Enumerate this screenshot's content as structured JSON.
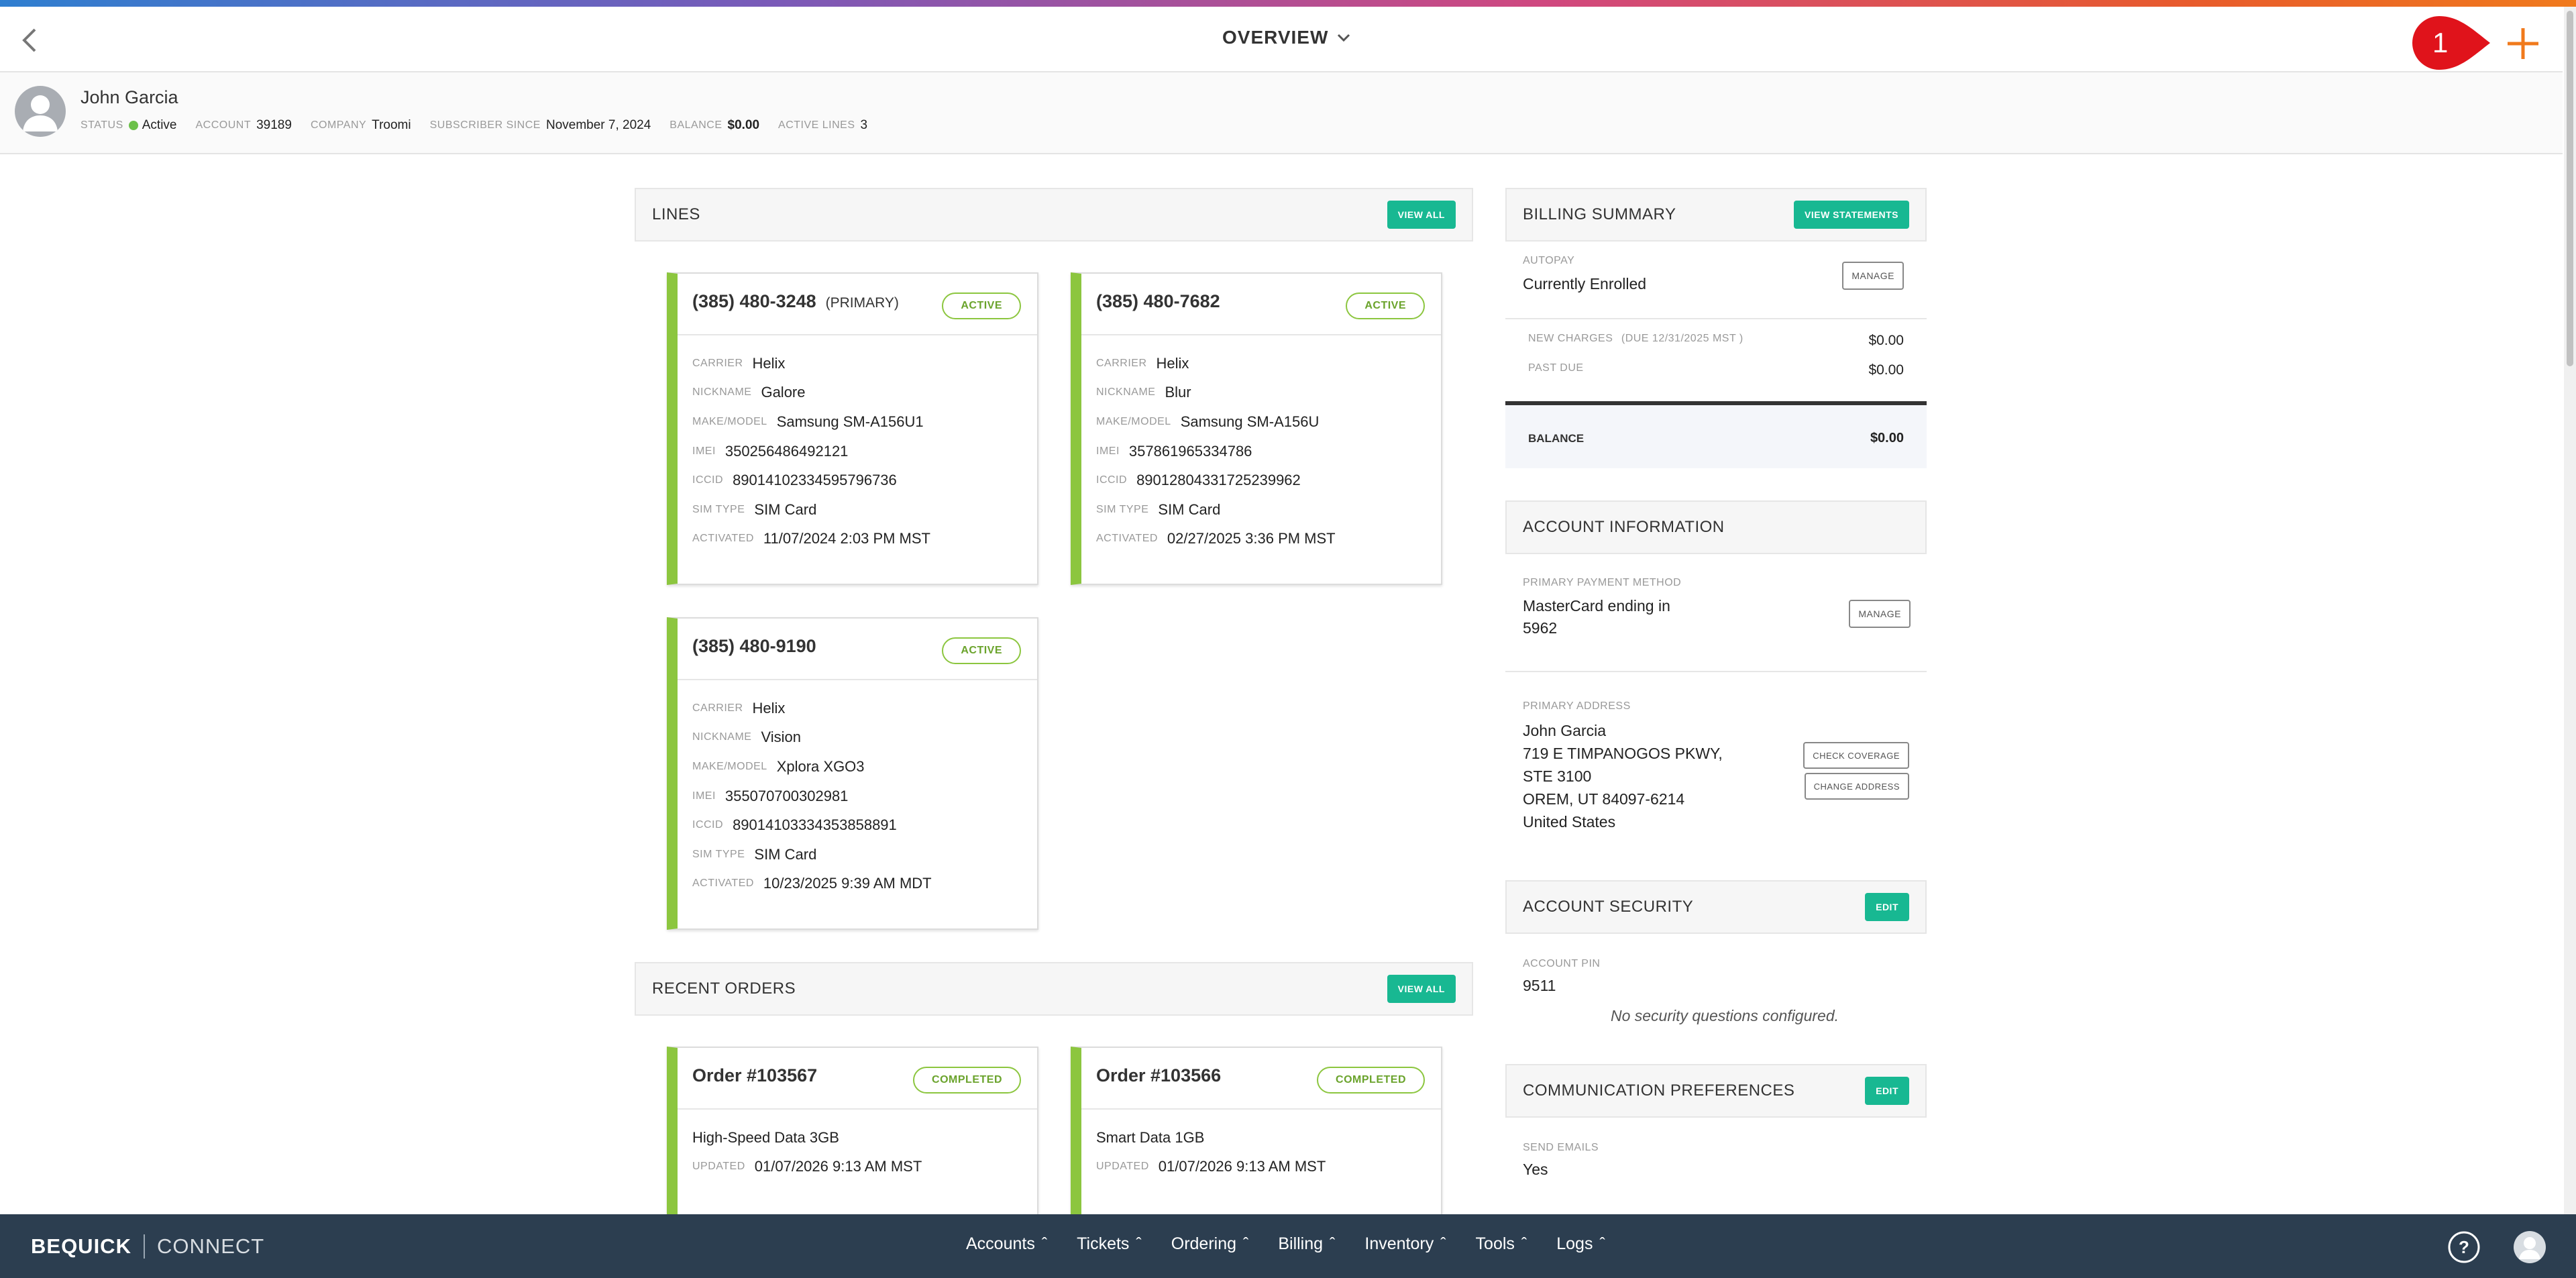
{
  "header": {
    "title": "OVERVIEW",
    "badge": "1"
  },
  "subscriber": {
    "name": "John Garcia",
    "status_label": "STATUS",
    "status": "Active",
    "account_label": "ACCOUNT",
    "account": "39189",
    "company_label": "COMPANY",
    "company": "Troomi",
    "since_label": "SUBSCRIBER SINCE",
    "since": "November 7, 2024",
    "balance_label": "BALANCE",
    "balance": "$0.00",
    "lines_label": "ACTIVE LINES",
    "lines": "3"
  },
  "lines": {
    "title": "LINES",
    "view_all": "VIEW ALL",
    "field_labels": {
      "carrier": "CARRIER",
      "nickname": "NICKNAME",
      "make": "MAKE/MODEL",
      "imei": "IMEI",
      "iccid": "ICCID",
      "sim": "SIM TYPE",
      "activated": "ACTIVATED"
    },
    "cards": [
      {
        "number": "(385) 480-3248",
        "tag": "(PRIMARY)",
        "status": "ACTIVE",
        "carrier": "Helix",
        "nickname": "Galore",
        "make": "Samsung SM-A156U1",
        "imei": "350256486492121",
        "iccid": "89014102334595796736",
        "sim": "SIM Card",
        "activated": "11/07/2024 2:03 PM MST"
      },
      {
        "number": "(385) 480-7682",
        "tag": "",
        "status": "ACTIVE",
        "carrier": "Helix",
        "nickname": "Blur",
        "make": "Samsung SM-A156U",
        "imei": "357861965334786",
        "iccid": "89012804331725239962",
        "sim": "SIM Card",
        "activated": "02/27/2025 3:36 PM MST"
      },
      {
        "number": "(385) 480-9190",
        "tag": "",
        "status": "ACTIVE",
        "carrier": "Helix",
        "nickname": "Vision",
        "make": "Xplora XGO3",
        "imei": "355070700302981",
        "iccid": "89014103334353858891",
        "sim": "SIM Card",
        "activated": "10/23/2025 9:39 AM MDT"
      }
    ]
  },
  "orders": {
    "title": "RECENT ORDERS",
    "view_all": "VIEW ALL",
    "updated_label": "UPDATED",
    "cards": [
      {
        "title": "Order #103567",
        "status": "COMPLETED",
        "item": "High-Speed Data 3GB",
        "updated": "01/07/2026 9:13 AM MST"
      },
      {
        "title": "Order #103566",
        "status": "COMPLETED",
        "item": "Smart Data 1GB",
        "updated": "01/07/2026 9:13 AM MST"
      }
    ]
  },
  "billing": {
    "title": "BILLING SUMMARY",
    "view_statements": "VIEW STATEMENTS",
    "autopay_label": "AUTOPAY",
    "autopay": "Currently Enrolled",
    "manage": "MANAGE",
    "new_charges_label": "NEW CHARGES",
    "due_note": "(DUE 12/31/2025 MST )",
    "new_charges": "$0.00",
    "past_due_label": "PAST DUE",
    "past_due": "$0.00",
    "balance_label": "BALANCE",
    "balance": "$0.00"
  },
  "account_info": {
    "title": "ACCOUNT INFORMATION",
    "payment_label": "PRIMARY PAYMENT METHOD",
    "payment_line1": "MasterCard ending in",
    "payment_line2": "5962",
    "manage": "MANAGE",
    "address_label": "PRIMARY ADDRESS",
    "address": [
      "John Garcia",
      "719 E TIMPANOGOS PKWY,",
      "STE 3100",
      "OREM, UT 84097-6214",
      "United States"
    ],
    "check_coverage": "CHECK COVERAGE",
    "change_address": "CHANGE ADDRESS"
  },
  "security": {
    "title": "ACCOUNT SECURITY",
    "edit": "EDIT",
    "pin_label": "ACCOUNT PIN",
    "pin": "9511",
    "no_questions": "No security questions configured."
  },
  "communication": {
    "title": "COMMUNICATION PREFERENCES",
    "edit": "EDIT",
    "emails_label": "SEND EMAILS",
    "emails": "Yes"
  },
  "nav": {
    "brand1": "BEQUICK",
    "brand2": "CONNECT",
    "items": [
      "Accounts",
      "Tickets",
      "Ordering",
      "Billing",
      "Inventory",
      "Tools",
      "Logs"
    ]
  },
  "colors": {
    "accent": "#18b892",
    "status_green": "#8cc63f",
    "nav_bg": "#2c3e50",
    "badge": "#e0131b",
    "plus": "#f07a1c"
  }
}
